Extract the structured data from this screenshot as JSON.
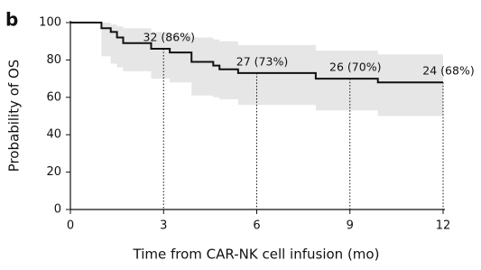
{
  "chart_data": {
    "type": "step",
    "panel_label": "b",
    "x_label": "Time from CAR-NK cell infusion (mo)",
    "y_label": "Probability of OS",
    "x": [
      0,
      1.0,
      1.3,
      1.5,
      1.7,
      2.6,
      3.2,
      3.9,
      4.6,
      4.8,
      5.4,
      7.9,
      9.9,
      12
    ],
    "series": [
      {
        "color": "#111111",
        "values": [
          100,
          97,
          95,
          92,
          89,
          86,
          84,
          79,
          77,
          75,
          73,
          70,
          68,
          68
        ]
      }
    ],
    "band": {
      "color": "#e6e6e6",
      "lower": [
        100,
        82,
        78,
        76,
        74,
        70,
        68,
        61,
        60,
        59,
        56,
        53,
        50,
        50
      ],
      "upper": [
        100,
        100,
        99,
        98,
        97,
        95,
        94,
        92,
        91,
        90,
        88,
        85,
        83,
        80
      ]
    },
    "annotations": [
      {
        "x": 3,
        "value": 86,
        "label": "32 (86%)"
      },
      {
        "x": 6,
        "value": 73,
        "label": "27 (73%)"
      },
      {
        "x": 9,
        "value": 70,
        "label": "26 (70%)"
      },
      {
        "x": 12,
        "value": 68,
        "label": "24 (68%)"
      }
    ],
    "xlim": [
      0,
      12
    ],
    "xticks": [
      0,
      3,
      6,
      9,
      12
    ],
    "ylim": [
      0,
      100
    ],
    "yticks": [
      0,
      20,
      40,
      60,
      80,
      100
    ]
  }
}
